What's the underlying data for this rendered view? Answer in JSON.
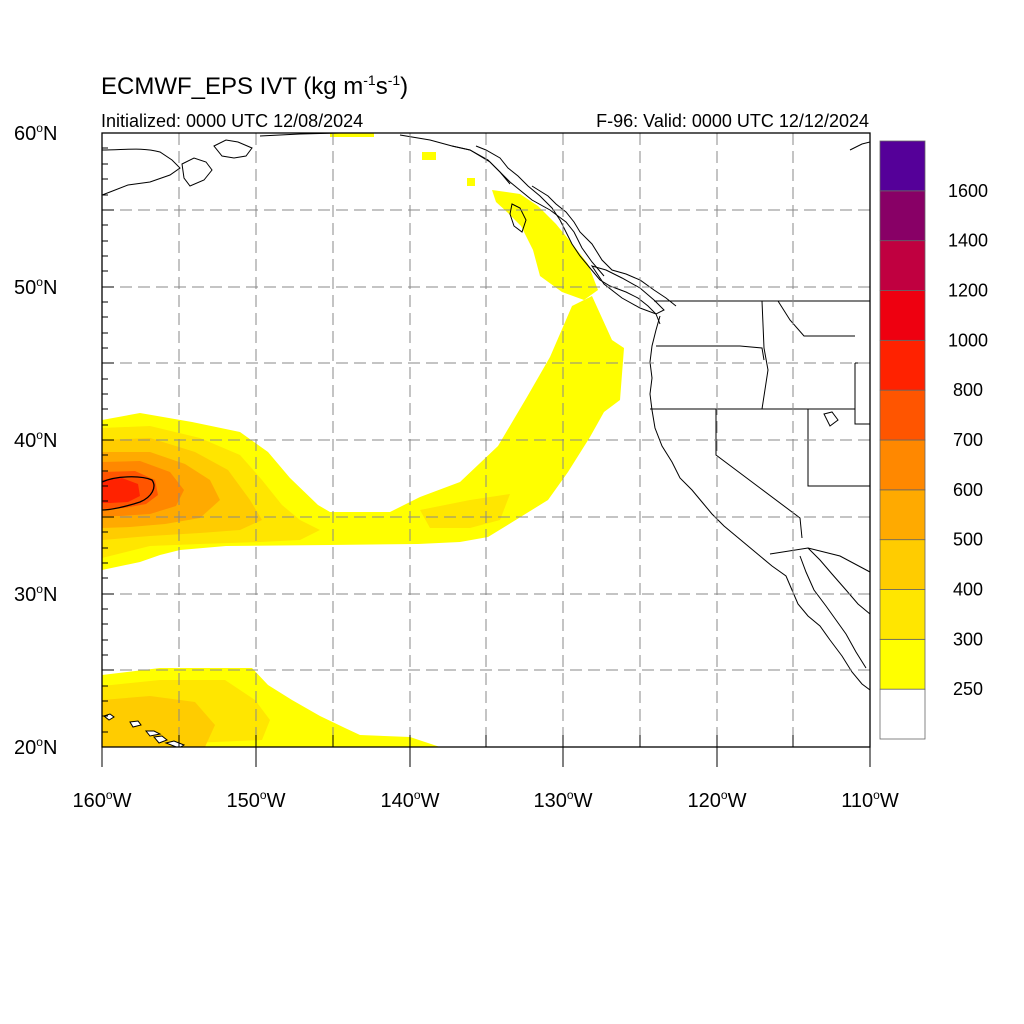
{
  "title": {
    "main": "ECMWF_EPS IVT (kg m",
    "sup1": "-1",
    "mid": "s",
    "sup2": "-1",
    "end": ")"
  },
  "subtitle_left": "Initialized: 0000 UTC 12/08/2024",
  "subtitle_right": "F-96: Valid: 0000 UTC 12/12/2024",
  "lat_labels": [
    "60",
    "50",
    "40",
    "30",
    "20"
  ],
  "lon_labels": [
    "160",
    "150",
    "140",
    "130",
    "120",
    "110"
  ],
  "lat_hemisphere": "N",
  "lon_hemisphere": "W",
  "colorbar": {
    "levels": [
      "250",
      "300",
      "400",
      "500",
      "600",
      "700",
      "800",
      "1000",
      "1200",
      "1400",
      "1600"
    ],
    "colors": [
      "#ffffff",
      "#ffff00",
      "#ffe600",
      "#ffcc00",
      "#ffaa00",
      "#ff8800",
      "#ff5500",
      "#ff2200",
      "#ee0010",
      "#c00040",
      "#880066",
      "#550099"
    ]
  },
  "map": {
    "lon_range": [
      -160,
      -110
    ],
    "lat_range": [
      20,
      60
    ],
    "fill_colors": {
      "ivt_250": "#ffff00",
      "ivt_300": "#ffe600",
      "ivt_400": "#ffcc00",
      "ivt_500": "#ffaa00",
      "ivt_600": "#ff8800",
      "ivt_700": "#ff5500",
      "ivt_800": "#ff2200"
    }
  }
}
